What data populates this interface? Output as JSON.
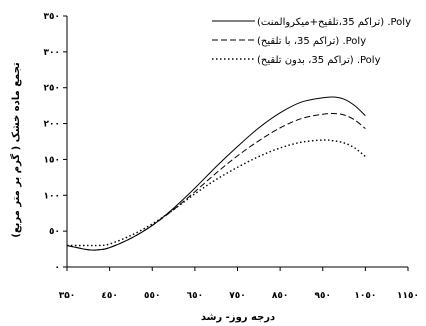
{
  "chart_data": {
    "type": "line",
    "ylabel": "تجمع ماده خشک ( گرم بر متر مربع)",
    "xlabel": "درجه روز- رشد",
    "x_ticks": [
      "۳۵۰",
      "٤٥٠",
      "٥٥٠",
      "٦٥٠",
      "٧٥٠",
      "٨٥٠",
      "٩٥٠",
      "١٠٥٠",
      "١١٥٠"
    ],
    "y_ticks": [
      "۰",
      "٥۰",
      "۱۰۰",
      "۱٥۰",
      "۲۰۰",
      "۲٥۰",
      "۳۰۰",
      "۳٥۰"
    ],
    "xlim": [
      350,
      1150
    ],
    "ylim": [
      0,
      350
    ],
    "grid": false,
    "legend_position": "top-right",
    "series": [
      {
        "name": "(تراکم 35،تلقیح+میکروالمنت) .Poly",
        "style": "solid",
        "color": "#000000",
        "x": [
          350,
          400,
          425,
          450,
          500,
          550,
          600,
          650,
          700,
          750,
          800,
          850,
          900,
          950,
          975,
          1000,
          1025,
          1050
        ],
        "y": [
          30,
          24,
          24,
          27,
          40,
          58,
          82,
          110,
          140,
          168,
          194,
          215,
          230,
          236,
          237,
          234,
          225,
          211
        ]
      },
      {
        "name": "(تراکم 35، با تلقیح) .Poly",
        "style": "dashed",
        "color": "#000000",
        "x": [
          350,
          400,
          425,
          450,
          500,
          550,
          600,
          650,
          700,
          750,
          800,
          850,
          900,
          950,
          975,
          1000,
          1025,
          1050
        ],
        "y": [
          30,
          24,
          24,
          27,
          40,
          58,
          80,
          105,
          131,
          155,
          176,
          194,
          207,
          213,
          214,
          212,
          205,
          193
        ]
      },
      {
        "name": "(تراکم 35، بدون تلقیح) .Poly",
        "style": "dotted",
        "color": "#000000",
        "x": [
          350,
          400,
          425,
          450,
          500,
          550,
          600,
          650,
          700,
          750,
          800,
          850,
          900,
          950,
          975,
          1000,
          1025,
          1050
        ],
        "y": [
          30,
          30,
          30,
          32,
          44,
          60,
          80,
          102,
          122,
          139,
          154,
          166,
          174,
          177,
          176,
          173,
          166,
          154
        ]
      }
    ]
  }
}
